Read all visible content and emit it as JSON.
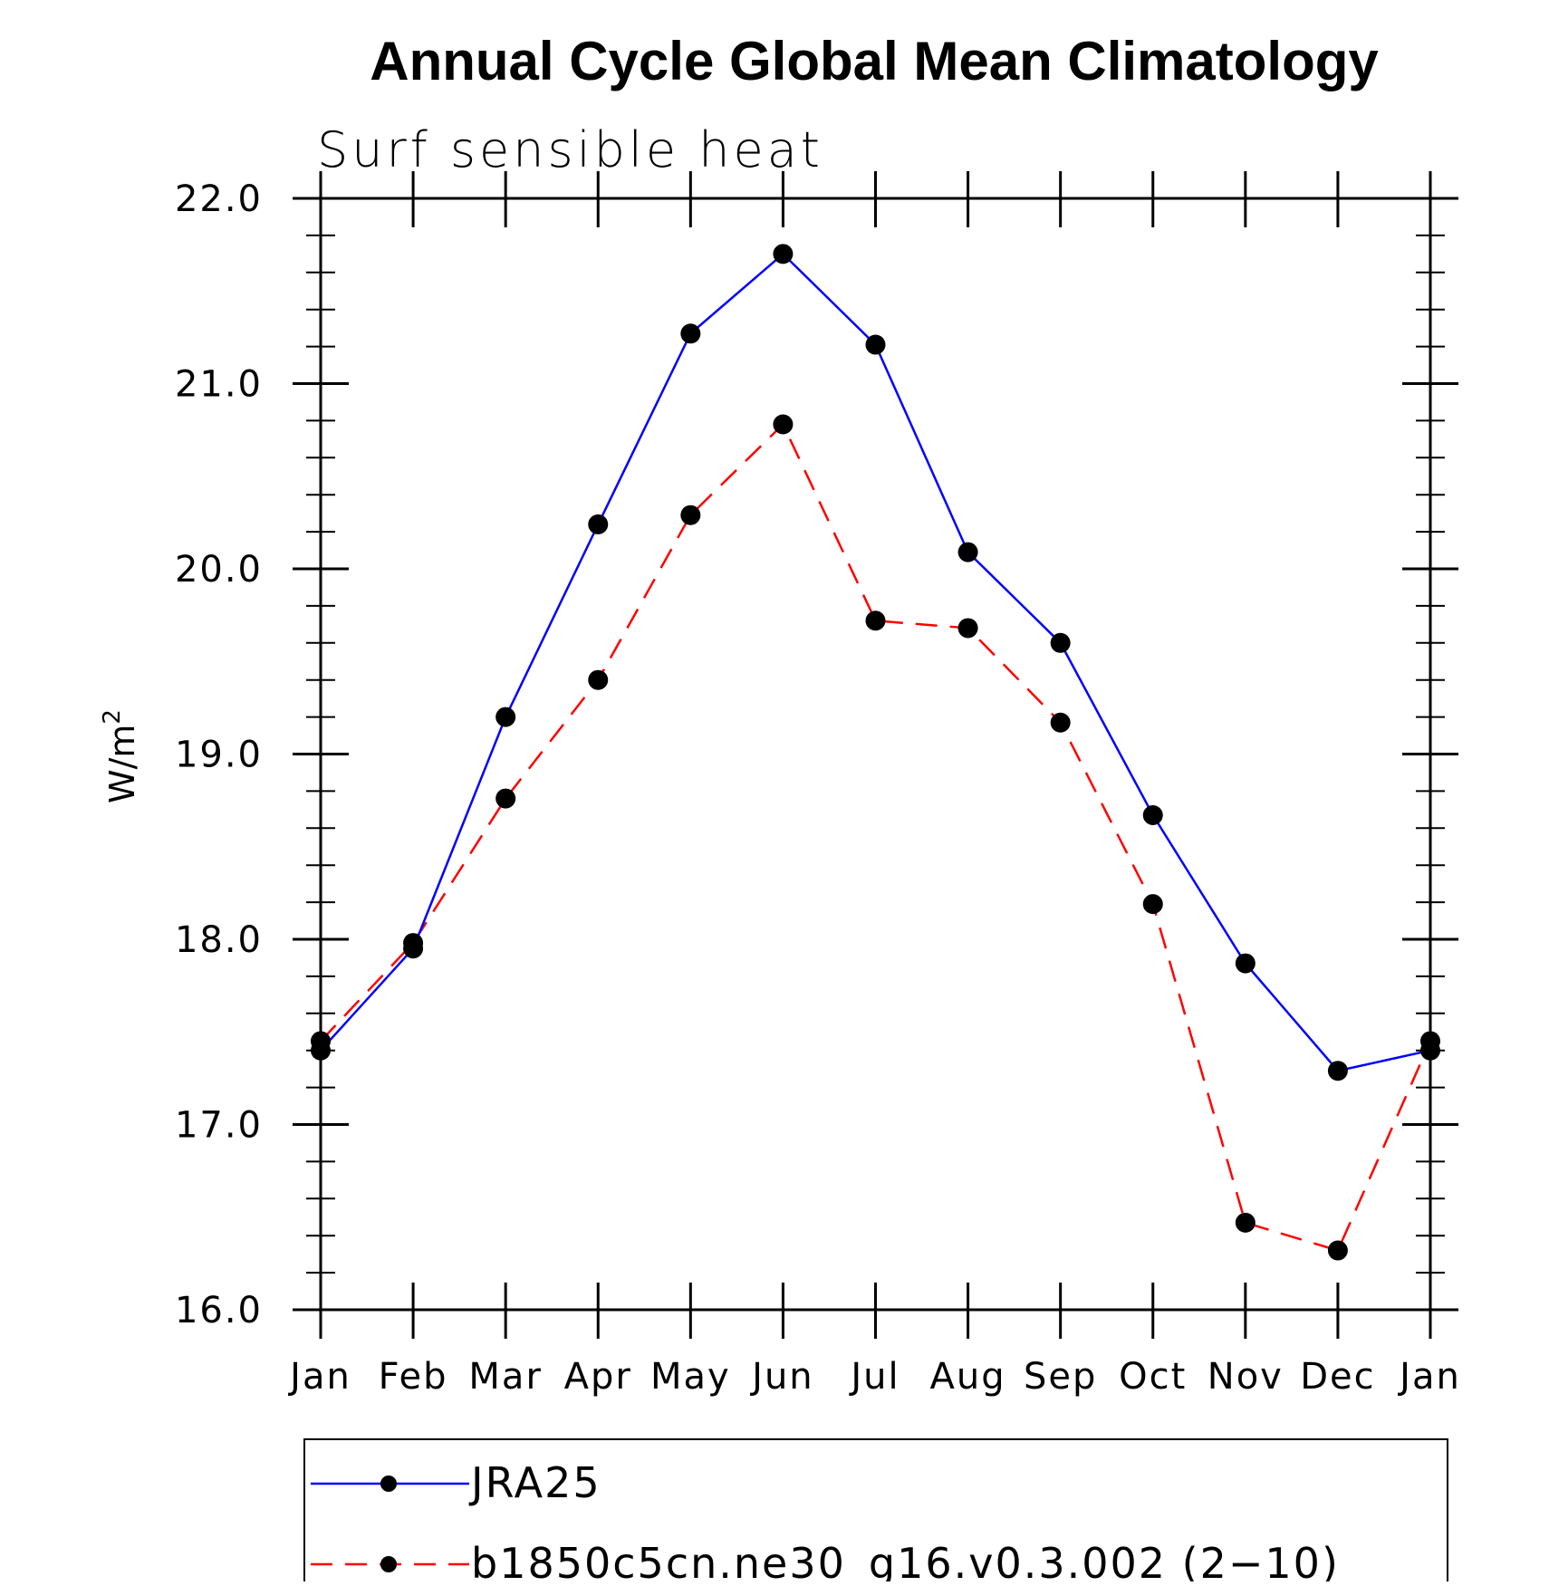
{
  "chart_data": {
    "type": "line",
    "title": "Annual Cycle Global Mean Climatology",
    "subtitle": "Surf sensible heat",
    "ylabel": "W/m",
    "ylabel_superscript": "2",
    "xlabel": "",
    "ylim": [
      16.0,
      22.0
    ],
    "y_major_ticks": [
      16.0,
      17.0,
      18.0,
      19.0,
      20.0,
      21.0,
      22.0
    ],
    "y_tick_labels": [
      "16.0",
      "17.0",
      "18.0",
      "19.0",
      "20.0",
      "21.0",
      "22.0"
    ],
    "y_minor_step": 0.2,
    "categories": [
      "Jan",
      "Feb",
      "Mar",
      "Apr",
      "May",
      "Jun",
      "Jul",
      "Aug",
      "Sep",
      "Oct",
      "Nov",
      "Dec",
      "Jan"
    ],
    "grid": false,
    "legend_position": "bottom",
    "series": [
      {
        "name": "JRA25",
        "color": "#0000ff",
        "line_style": "solid",
        "marker": "filled-circle",
        "values": [
          17.4,
          17.95,
          19.2,
          20.24,
          21.27,
          21.7,
          21.21,
          20.09,
          19.6,
          18.67,
          17.87,
          17.29,
          17.4
        ]
      },
      {
        "name": "b1850c5cn.ne30_g16.v0.3.002 (2−10)",
        "color": "#ff0000",
        "line_style": "dashed",
        "marker": "filled-circle",
        "values": [
          17.45,
          17.98,
          18.76,
          19.4,
          20.29,
          20.78,
          19.72,
          19.68,
          19.17,
          18.19,
          16.47,
          16.32,
          17.45
        ]
      }
    ]
  }
}
